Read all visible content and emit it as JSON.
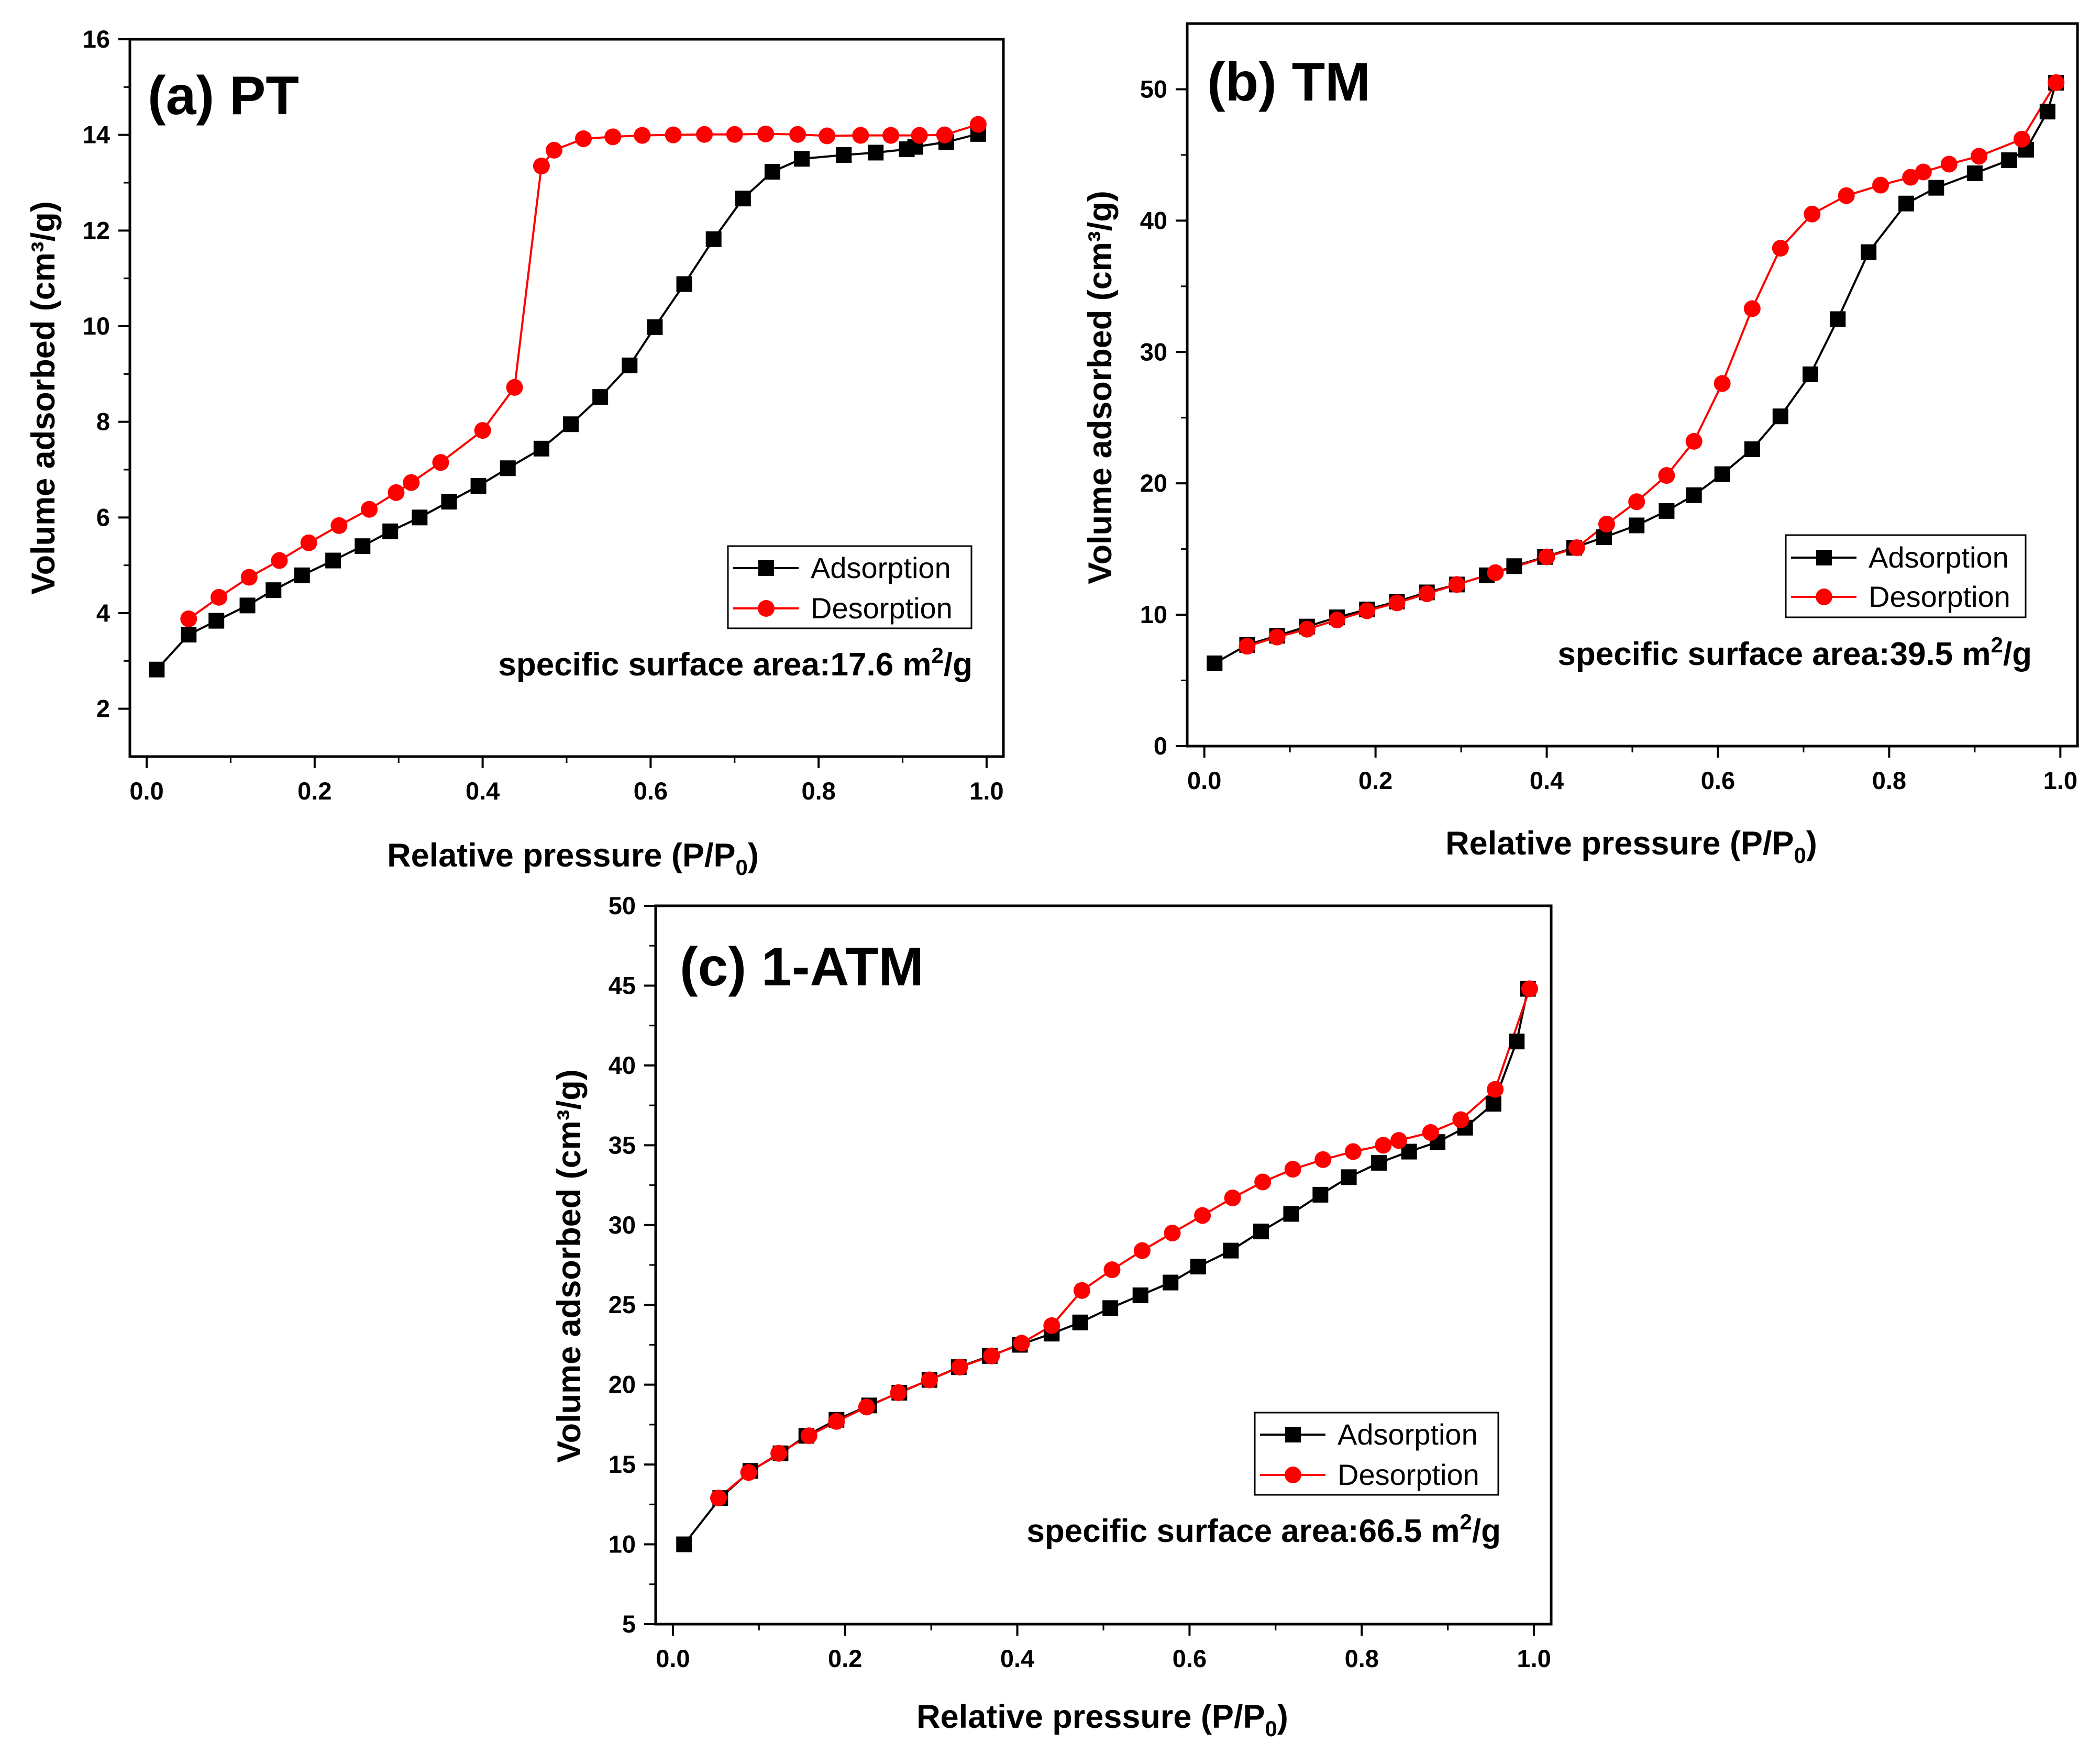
{
  "chart_data": [
    {
      "type": "line",
      "panel_title": "(a) PT",
      "xlabel": "Relative pressure (P/P0)",
      "xlabel_main": "Relative pressure (P/P",
      "xlabel_sub": "0",
      "xlabel_tail": ")",
      "ylabel": "Volume adsorbed (cm³/g)",
      "xlim": [
        -0.02,
        1.02
      ],
      "ylim": [
        1,
        16
      ],
      "xticks": [
        "0.0",
        "0.2",
        "0.4",
        "0.6",
        "0.8",
        "1.0"
      ],
      "yticks": [
        "2",
        "4",
        "6",
        "8",
        "10",
        "12",
        "14",
        "16"
      ],
      "legend_position": "lower-right",
      "annotation": "specific surface area:17.6 m²/g",
      "annotation_main": "specific surface area:17.6 m",
      "annotation_sup": "2",
      "annotation_tail": "/g",
      "series": [
        {
          "name": "Adsorption",
          "color": "#000000",
          "marker": "square",
          "x": [
            0.012,
            0.05,
            0.083,
            0.12,
            0.151,
            0.185,
            0.222,
            0.257,
            0.29,
            0.325,
            0.36,
            0.395,
            0.43,
            0.47,
            0.505,
            0.54,
            0.575,
            0.605,
            0.64,
            0.675,
            0.71,
            0.745,
            0.78,
            0.83,
            0.868,
            0.905,
            0.915,
            0.952,
            0.99
          ],
          "y": [
            2.82,
            3.55,
            3.84,
            4.16,
            4.48,
            4.79,
            5.1,
            5.4,
            5.71,
            6.0,
            6.33,
            6.66,
            7.03,
            7.44,
            7.95,
            8.52,
            9.18,
            9.98,
            10.88,
            11.82,
            12.67,
            13.23,
            13.5,
            13.58,
            13.63,
            13.7,
            13.75,
            13.85,
            14.02
          ]
        },
        {
          "name": "Desorption",
          "color": "#ff0000",
          "marker": "circle",
          "x": [
            0.05,
            0.086,
            0.122,
            0.158,
            0.193,
            0.229,
            0.265,
            0.297,
            0.315,
            0.35,
            0.4,
            0.438,
            0.47,
            0.485,
            0.52,
            0.555,
            0.59,
            0.627,
            0.664,
            0.7,
            0.737,
            0.775,
            0.81,
            0.85,
            0.886,
            0.92,
            0.95,
            0.99
          ],
          "y": [
            3.88,
            4.33,
            4.75,
            5.1,
            5.47,
            5.83,
            6.17,
            6.52,
            6.73,
            7.15,
            7.82,
            8.72,
            13.35,
            13.68,
            13.92,
            13.96,
            13.99,
            14.0,
            14.01,
            14.01,
            14.02,
            14.01,
            13.98,
            13.99,
            13.99,
            13.99,
            14.0,
            14.22
          ]
        }
      ]
    },
    {
      "type": "line",
      "panel_title": "(b) TM",
      "xlabel": "Relative pressure (P/P0)",
      "xlabel_main": "Relative pressure (P/P",
      "xlabel_sub": "0",
      "xlabel_tail": ")",
      "ylabel": "Volume adsorbed (cm³/g)",
      "xlim": [
        -0.02,
        1.02
      ],
      "ylim": [
        0,
        55
      ],
      "xticks": [
        "0.0",
        "0.2",
        "0.4",
        "0.6",
        "0.8",
        "1.0"
      ],
      "yticks": [
        "0",
        "10",
        "20",
        "30",
        "40",
        "50"
      ],
      "legend_position": "lower-right",
      "annotation": "specific surface area:39.5 m²/g",
      "annotation_main": "specific surface area:39.5 m",
      "annotation_sup": "2",
      "annotation_tail": "/g",
      "series": [
        {
          "name": "Adsorption",
          "color": "#000000",
          "marker": "square",
          "x": [
            0.012,
            0.05,
            0.085,
            0.12,
            0.155,
            0.19,
            0.225,
            0.26,
            0.295,
            0.33,
            0.362,
            0.398,
            0.432,
            0.467,
            0.505,
            0.54,
            0.572,
            0.605,
            0.64,
            0.673,
            0.708,
            0.74,
            0.776,
            0.82,
            0.855,
            0.9,
            0.94,
            0.96,
            0.985,
            0.995
          ],
          "y": [
            6.3,
            7.7,
            8.4,
            9.1,
            9.8,
            10.4,
            11.0,
            11.7,
            12.3,
            13.0,
            13.7,
            14.4,
            15.1,
            15.9,
            16.8,
            17.9,
            19.1,
            20.7,
            22.6,
            25.1,
            28.3,
            32.5,
            37.6,
            41.3,
            42.5,
            43.6,
            44.6,
            45.4,
            48.3,
            50.5
          ]
        },
        {
          "name": "Desorption",
          "color": "#ff0000",
          "marker": "circle",
          "x": [
            0.05,
            0.085,
            0.12,
            0.155,
            0.19,
            0.225,
            0.26,
            0.295,
            0.34,
            0.4,
            0.435,
            0.47,
            0.505,
            0.54,
            0.572,
            0.605,
            0.64,
            0.673,
            0.71,
            0.75,
            0.79,
            0.825,
            0.84,
            0.87,
            0.905,
            0.955,
            0.995
          ],
          "y": [
            7.6,
            8.3,
            8.9,
            9.6,
            10.3,
            10.9,
            11.6,
            12.3,
            13.2,
            14.4,
            15.1,
            16.9,
            18.6,
            20.6,
            23.2,
            27.6,
            33.3,
            37.9,
            40.5,
            41.9,
            42.7,
            43.3,
            43.7,
            44.3,
            44.9,
            46.2,
            50.5
          ]
        }
      ]
    },
    {
      "type": "line",
      "panel_title": "(c) 1-ATM",
      "xlabel": "Relative pressure (P/P0)",
      "xlabel_main": "Relative pressure (P/P",
      "xlabel_sub": "0",
      "xlabel_tail": ")",
      "ylabel": "Volume adsorbed (cm³/g)",
      "xlim": [
        -0.02,
        1.02
      ],
      "ylim": [
        5,
        50
      ],
      "xticks": [
        "0.0",
        "0.2",
        "0.4",
        "0.6",
        "0.8",
        "1.0"
      ],
      "yticks": [
        "5",
        "10",
        "15",
        "20",
        "25",
        "30",
        "35",
        "40",
        "45",
        "50"
      ],
      "legend_position": "lower-right",
      "annotation": "specific surface area:66.5 m²/g",
      "annotation_main": "specific surface area:66.5 m",
      "annotation_sup": "2",
      "annotation_tail": "/g",
      "series": [
        {
          "name": "Adsorption",
          "color": "#000000",
          "marker": "square",
          "x": [
            0.013,
            0.055,
            0.09,
            0.125,
            0.155,
            0.19,
            0.228,
            0.263,
            0.298,
            0.332,
            0.368,
            0.403,
            0.44,
            0.473,
            0.508,
            0.543,
            0.578,
            0.61,
            0.648,
            0.683,
            0.718,
            0.752,
            0.785,
            0.82,
            0.855,
            0.888,
            0.92,
            0.953,
            0.98,
            0.993
          ],
          "y": [
            10.0,
            12.9,
            14.6,
            15.7,
            16.8,
            17.8,
            18.7,
            19.5,
            20.3,
            21.1,
            21.8,
            22.5,
            23.2,
            23.9,
            24.8,
            25.6,
            26.4,
            27.4,
            28.4,
            29.6,
            30.7,
            31.9,
            33.0,
            33.9,
            34.6,
            35.2,
            36.1,
            37.6,
            41.5,
            44.8
          ]
        },
        {
          "name": "Desorption",
          "color": "#ff0000",
          "marker": "circle",
          "x": [
            0.053,
            0.088,
            0.123,
            0.158,
            0.19,
            0.225,
            0.262,
            0.298,
            0.333,
            0.37,
            0.405,
            0.44,
            0.475,
            0.51,
            0.545,
            0.58,
            0.615,
            0.65,
            0.685,
            0.72,
            0.755,
            0.79,
            0.825,
            0.843,
            0.88,
            0.915,
            0.955,
            0.995
          ],
          "y": [
            12.9,
            14.5,
            15.7,
            16.8,
            17.7,
            18.6,
            19.5,
            20.3,
            21.1,
            21.8,
            22.6,
            23.7,
            25.9,
            27.2,
            28.4,
            29.5,
            30.6,
            31.7,
            32.7,
            33.5,
            34.1,
            34.6,
            35.0,
            35.3,
            35.8,
            36.6,
            38.5,
            44.8
          ]
        }
      ]
    }
  ]
}
